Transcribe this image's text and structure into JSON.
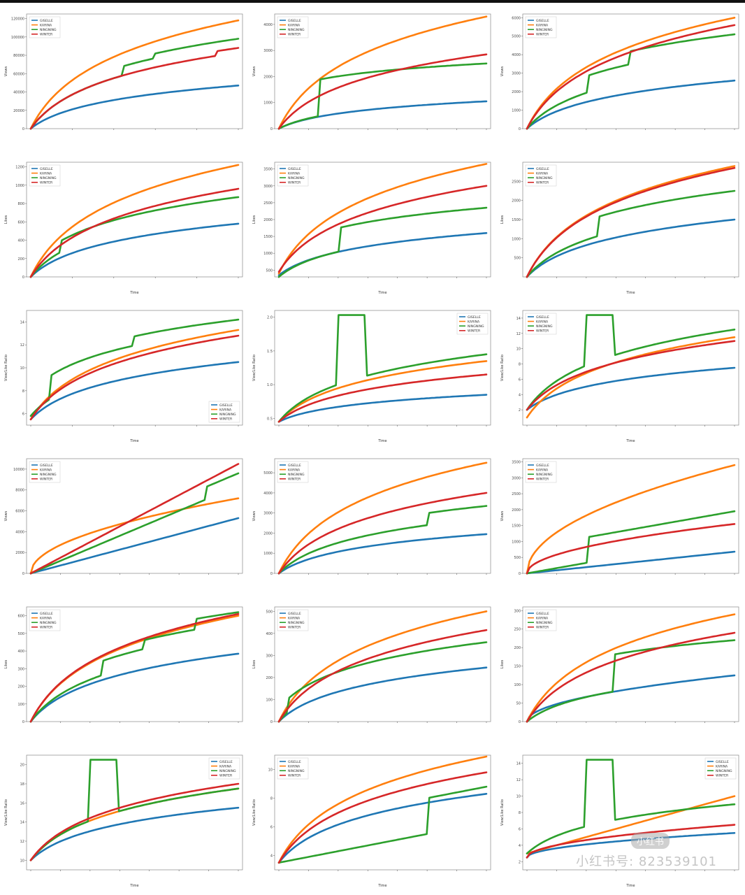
{
  "watermark": {
    "text": "小红书号: 823539101",
    "badge": "小红书"
  },
  "legend_names": [
    "GISELLE",
    "KARINA",
    "NINGNING",
    "WINTER"
  ],
  "colors": {
    "GISELLE": "#1f77b4",
    "KARINA": "#ff7f0e",
    "NINGNING": "#2ca02c",
    "WINTER": "#d62728"
  },
  "chart_data": [
    {
      "type": "line",
      "title": "",
      "xlabel": "",
      "ylabel": "Views",
      "legend": "top-left",
      "x_ticks": [
        "",
        "",
        "",
        "",
        "",
        ""
      ],
      "y_ticks": [
        "0",
        "20000",
        "40000",
        "60000",
        "80000",
        "100000",
        "120000"
      ],
      "ylim": [
        0,
        125000
      ],
      "series": [
        {
          "name": "GISELLE",
          "curve": "log",
          "end": 47000,
          "steps": []
        },
        {
          "name": "KARINA",
          "curve": "log",
          "end": 118000,
          "steps": []
        },
        {
          "name": "NINGNING",
          "curve": "log",
          "end": 98000,
          "steps": [
            [
              0.45,
              10000
            ],
            [
              0.6,
              5000
            ]
          ]
        },
        {
          "name": "WINTER",
          "curve": "log",
          "end": 88000,
          "steps": [
            [
              0.9,
              5000
            ]
          ]
        }
      ]
    },
    {
      "type": "line",
      "title": "",
      "xlabel": "",
      "ylabel": "Views",
      "legend": "top-left",
      "x_ticks": [
        "",
        "",
        "",
        "",
        "",
        "",
        "",
        ""
      ],
      "y_ticks": [
        "0",
        "1000",
        "2000",
        "3000",
        "4000"
      ],
      "ylim": [
        0,
        4400
      ],
      "series": [
        {
          "name": "GISELLE",
          "curve": "log",
          "end": 1050,
          "steps": []
        },
        {
          "name": "KARINA",
          "curve": "log",
          "end": 4300,
          "steps": []
        },
        {
          "name": "NINGNING",
          "curve": "log",
          "end": 2500,
          "steps": [
            [
              0.2,
              1400
            ]
          ]
        },
        {
          "name": "WINTER",
          "curve": "log",
          "end": 2850,
          "steps": []
        }
      ]
    },
    {
      "type": "line",
      "title": "",
      "xlabel": "",
      "ylabel": "Views",
      "legend": "top-left",
      "x_ticks": [
        "",
        "",
        "",
        "",
        "",
        "",
        "",
        ""
      ],
      "y_ticks": [
        "0",
        "1000",
        "2000",
        "3000",
        "4000",
        "5000",
        "6000"
      ],
      "ylim": [
        0,
        6200
      ],
      "series": [
        {
          "name": "GISELLE",
          "curve": "log",
          "end": 2600,
          "steps": []
        },
        {
          "name": "KARINA",
          "curve": "log",
          "end": 6000,
          "steps": []
        },
        {
          "name": "NINGNING",
          "curve": "log",
          "end": 5100,
          "steps": [
            [
              0.3,
              900
            ],
            [
              0.5,
              700
            ]
          ]
        },
        {
          "name": "WINTER",
          "curve": "log",
          "end": 5600,
          "steps": []
        }
      ]
    },
    {
      "type": "line",
      "title": "",
      "xlabel": "Time",
      "ylabel": "Likes",
      "legend": "top-left",
      "x_ticks": [
        "",
        "",
        "",
        "",
        "",
        ""
      ],
      "y_ticks": [
        "0",
        "200",
        "400",
        "600",
        "800",
        "1000",
        "1200"
      ],
      "ylim": [
        0,
        1250
      ],
      "series": [
        {
          "name": "GISELLE",
          "curve": "log",
          "end": 580,
          "steps": []
        },
        {
          "name": "KARINA",
          "curve": "log",
          "end": 1220,
          "steps": []
        },
        {
          "name": "NINGNING",
          "curve": "log",
          "end": 870,
          "steps": [
            [
              0.15,
              120
            ]
          ]
        },
        {
          "name": "WINTER",
          "curve": "log",
          "end": 960,
          "steps": []
        }
      ]
    },
    {
      "type": "line",
      "title": "",
      "xlabel": "Time",
      "ylabel": "Likes",
      "legend": "top-left",
      "x_ticks": [
        "",
        "",
        "",
        "",
        "",
        "",
        "",
        ""
      ],
      "y_ticks": [
        "500",
        "1000",
        "1500",
        "2000",
        "2500",
        "3000",
        "3500"
      ],
      "ylim": [
        300,
        3700
      ],
      "series": [
        {
          "name": "GISELLE",
          "curve": "log",
          "end": 1600,
          "steps": [],
          "start": 350
        },
        {
          "name": "KARINA",
          "curve": "log",
          "end": 3650,
          "steps": [],
          "start": 400
        },
        {
          "name": "NINGNING",
          "curve": "log",
          "end": 2350,
          "steps": [
            [
              0.3,
              700
            ]
          ],
          "start": 300
        },
        {
          "name": "WINTER",
          "curve": "log",
          "end": 3000,
          "steps": [],
          "start": 450
        }
      ]
    },
    {
      "type": "line",
      "title": "",
      "xlabel": "Time",
      "ylabel": "Likes",
      "legend": "top-left",
      "x_ticks": [
        "",
        "",
        "",
        "",
        "",
        "",
        "",
        ""
      ],
      "y_ticks": [
        "500",
        "1000",
        "1500",
        "2000",
        "2500"
      ],
      "ylim": [
        0,
        3000
      ],
      "series": [
        {
          "name": "GISELLE",
          "curve": "log",
          "end": 1500,
          "steps": []
        },
        {
          "name": "KARINA",
          "curve": "log",
          "end": 2900,
          "steps": []
        },
        {
          "name": "NINGNING",
          "curve": "log",
          "end": 2250,
          "steps": [
            [
              0.35,
              500
            ]
          ]
        },
        {
          "name": "WINTER",
          "curve": "log",
          "end": 2850,
          "steps": []
        }
      ]
    },
    {
      "type": "line",
      "title": "",
      "xlabel": "Time",
      "ylabel": "View/Like Ratio",
      "legend": "bottom-right",
      "x_ticks": [
        "",
        "",
        "",
        "",
        "",
        ""
      ],
      "y_ticks": [
        "6",
        "8",
        "10",
        "12",
        "14"
      ],
      "ylim": [
        5,
        15
      ],
      "series": [
        {
          "name": "GISELLE",
          "curve": "log",
          "end": 10.5,
          "steps": [],
          "start": 5.5
        },
        {
          "name": "KARINA",
          "curve": "log",
          "end": 13.3,
          "steps": [],
          "start": 5.5
        },
        {
          "name": "NINGNING",
          "curve": "log",
          "end": 14.2,
          "steps": [
            [
              0.1,
              2
            ],
            [
              0.5,
              0.8
            ]
          ],
          "start": 5.8
        },
        {
          "name": "WINTER",
          "curve": "log",
          "end": 12.8,
          "steps": [],
          "start": 5.5
        }
      ]
    },
    {
      "type": "line",
      "title": "",
      "xlabel": "Time",
      "ylabel": "View/Like Ratio",
      "legend": "top-right",
      "x_ticks": [
        "",
        "",
        "",
        "",
        "",
        "",
        "",
        ""
      ],
      "y_ticks": [
        "0.5",
        "1.0",
        "1.5",
        "2.0"
      ],
      "ylim": [
        0.4,
        2.1
      ],
      "series": [
        {
          "name": "GISELLE",
          "curve": "log",
          "end": 0.85,
          "steps": [],
          "start": 0.45
        },
        {
          "name": "KARINA",
          "curve": "log",
          "end": 1.35,
          "steps": [],
          "start": 0.45
        },
        {
          "name": "NINGNING",
          "curve": "spike",
          "end": 1.45,
          "steps": [],
          "start": 0.45
        },
        {
          "name": "WINTER",
          "curve": "log",
          "end": 1.15,
          "steps": [],
          "start": 0.45
        }
      ]
    },
    {
      "type": "line",
      "title": "",
      "xlabel": "Time",
      "ylabel": "View/Like Ratio",
      "legend": "top-left",
      "x_ticks": [
        "",
        "",
        "",
        "",
        "",
        "",
        "",
        ""
      ],
      "y_ticks": [
        "2",
        "4",
        "6",
        "8",
        "10",
        "12",
        "14"
      ],
      "ylim": [
        0,
        15
      ],
      "series": [
        {
          "name": "GISELLE",
          "curve": "log",
          "end": 7.5,
          "steps": [],
          "start": 2
        },
        {
          "name": "KARINA",
          "curve": "log",
          "end": 11.5,
          "steps": [],
          "start": 1
        },
        {
          "name": "NINGNING",
          "curve": "spike",
          "end": 12.5,
          "steps": [],
          "start": 2
        },
        {
          "name": "WINTER",
          "curve": "log",
          "end": 11,
          "steps": [],
          "start": 2
        }
      ]
    },
    {
      "type": "line",
      "title": "",
      "xlabel": "",
      "ylabel": "Views",
      "legend": "top-left",
      "x_ticks": [
        "",
        "",
        "",
        "",
        "",
        "",
        "",
        ""
      ],
      "y_ticks": [
        "0",
        "2000",
        "4000",
        "6000",
        "8000",
        "10000"
      ],
      "ylim": [
        0,
        11000
      ],
      "series": [
        {
          "name": "GISELLE",
          "curve": "lin",
          "end": 5300,
          "steps": []
        },
        {
          "name": "KARINA",
          "curve": "sqrt",
          "end": 7200,
          "steps": []
        },
        {
          "name": "NINGNING",
          "curve": "lin",
          "end": 9600,
          "steps": [
            [
              0.85,
              1200
            ]
          ]
        },
        {
          "name": "WINTER",
          "curve": "lin",
          "end": 10500,
          "steps": []
        }
      ]
    },
    {
      "type": "line",
      "title": "",
      "xlabel": "",
      "ylabel": "Views",
      "legend": "top-left",
      "x_ticks": [
        "",
        "",
        "",
        "",
        "",
        "",
        "",
        ""
      ],
      "y_ticks": [
        "0",
        "1000",
        "2000",
        "3000",
        "4000",
        "5000"
      ],
      "ylim": [
        0,
        5700
      ],
      "series": [
        {
          "name": "GISELLE",
          "curve": "log",
          "end": 1950,
          "steps": []
        },
        {
          "name": "KARINA",
          "curve": "log",
          "end": 5500,
          "steps": []
        },
        {
          "name": "NINGNING",
          "curve": "log",
          "end": 3350,
          "steps": [
            [
              0.72,
              600
            ]
          ]
        },
        {
          "name": "WINTER",
          "curve": "log",
          "end": 4000,
          "steps": []
        }
      ]
    },
    {
      "type": "line",
      "title": "",
      "xlabel": "",
      "ylabel": "Views",
      "legend": "top-left",
      "x_ticks": [
        "",
        "",
        "",
        "",
        "",
        "",
        "",
        ""
      ],
      "y_ticks": [
        "0",
        "500",
        "1000",
        "1500",
        "2000",
        "2500",
        "3000",
        "3500"
      ],
      "ylim": [
        0,
        3600
      ],
      "series": [
        {
          "name": "GISELLE",
          "curve": "lin",
          "end": 680,
          "steps": []
        },
        {
          "name": "KARINA",
          "curve": "sqrt",
          "end": 3400,
          "steps": []
        },
        {
          "name": "NINGNING",
          "curve": "lin",
          "end": 1950,
          "steps": [
            [
              0.3,
              800
            ]
          ]
        },
        {
          "name": "WINTER",
          "curve": "sqrt",
          "end": 1550,
          "steps": []
        }
      ]
    },
    {
      "type": "line",
      "title": "",
      "xlabel": "",
      "ylabel": "Likes",
      "legend": "top-left",
      "x_ticks": [
        "",
        "",
        "",
        "",
        "",
        "",
        "",
        ""
      ],
      "y_ticks": [
        "0",
        "100",
        "200",
        "300",
        "400",
        "500",
        "600"
      ],
      "ylim": [
        0,
        650
      ],
      "series": [
        {
          "name": "GISELLE",
          "curve": "log",
          "end": 385,
          "steps": []
        },
        {
          "name": "KARINA",
          "curve": "log",
          "end": 600,
          "steps": []
        },
        {
          "name": "NINGNING",
          "curve": "log",
          "end": 620,
          "steps": [
            [
              0.35,
              80
            ],
            [
              0.55,
              50
            ],
            [
              0.8,
              60
            ]
          ]
        },
        {
          "name": "WINTER",
          "curve": "log",
          "end": 610,
          "steps": []
        }
      ]
    },
    {
      "type": "line",
      "title": "",
      "xlabel": "",
      "ylabel": "Likes",
      "legend": "top-left",
      "x_ticks": [
        "",
        "",
        "",
        "",
        "",
        "",
        "",
        ""
      ],
      "y_ticks": [
        "0",
        "100",
        "200",
        "300",
        "400",
        "500"
      ],
      "ylim": [
        0,
        520
      ],
      "series": [
        {
          "name": "GISELLE",
          "curve": "log",
          "end": 245,
          "steps": []
        },
        {
          "name": "KARINA",
          "curve": "log",
          "end": 500,
          "steps": []
        },
        {
          "name": "NINGNING",
          "curve": "log",
          "end": 360,
          "steps": [
            [
              0.05,
              60
            ]
          ]
        },
        {
          "name": "WINTER",
          "curve": "log",
          "end": 415,
          "steps": []
        }
      ]
    },
    {
      "type": "line",
      "title": "",
      "xlabel": "",
      "ylabel": "Likes",
      "legend": "top-left",
      "x_ticks": [
        "",
        "",
        "",
        "",
        "",
        "",
        "",
        ""
      ],
      "y_ticks": [
        "0",
        "50",
        "100",
        "150",
        "200",
        "250",
        "300"
      ],
      "ylim": [
        0,
        310
      ],
      "series": [
        {
          "name": "GISELLE",
          "curve": "sqrt",
          "end": 125,
          "steps": []
        },
        {
          "name": "KARINA",
          "curve": "log",
          "end": 290,
          "steps": []
        },
        {
          "name": "NINGNING",
          "curve": "log",
          "end": 220,
          "steps": [
            [
              0.42,
              100
            ]
          ]
        },
        {
          "name": "WINTER",
          "curve": "log",
          "end": 240,
          "steps": []
        }
      ]
    },
    {
      "type": "line",
      "title": "",
      "xlabel": "Time",
      "ylabel": "View/Like Ratio",
      "legend": "top-right",
      "x_ticks": [
        "",
        "",
        "",
        "",
        "",
        "",
        "",
        ""
      ],
      "y_ticks": [
        "10",
        "12",
        "14",
        "16",
        "18",
        "20"
      ],
      "ylim": [
        9,
        21
      ],
      "series": [
        {
          "name": "GISELLE",
          "curve": "log",
          "end": 15.5,
          "steps": [],
          "start": 10
        },
        {
          "name": "KARINA",
          "curve": "log",
          "end": 17.5,
          "steps": [],
          "start": 10
        },
        {
          "name": "NINGNING",
          "curve": "spike",
          "end": 17.5,
          "steps": [],
          "start": 10
        },
        {
          "name": "WINTER",
          "curve": "log",
          "end": 18,
          "steps": [],
          "start": 10
        }
      ]
    },
    {
      "type": "line",
      "title": "",
      "xlabel": "Time",
      "ylabel": "View/Like Ratio",
      "legend": "top-left",
      "x_ticks": [
        "",
        "",
        "",
        "",
        "",
        "",
        "",
        ""
      ],
      "y_ticks": [
        "4",
        "6",
        "8",
        "10"
      ],
      "ylim": [
        3,
        11
      ],
      "series": [
        {
          "name": "GISELLE",
          "curve": "log",
          "end": 8.3,
          "steps": [],
          "start": 3.5
        },
        {
          "name": "KARINA",
          "curve": "log",
          "end": 10.9,
          "steps": [],
          "start": 3.5
        },
        {
          "name": "NINGNING",
          "curve": "lin",
          "end": 8.8,
          "steps": [
            [
              0.72,
              2.5
            ]
          ],
          "start": 3.5
        },
        {
          "name": "WINTER",
          "curve": "log",
          "end": 9.8,
          "steps": [],
          "start": 3.5
        }
      ]
    },
    {
      "type": "line",
      "title": "",
      "xlabel": "Time",
      "ylabel": "View/Like Ratio",
      "legend": "top-right",
      "x_ticks": [
        "",
        "",
        "",
        "",
        "",
        "",
        "",
        ""
      ],
      "y_ticks": [
        "2",
        "4",
        "6",
        "8",
        "10",
        "12",
        "14"
      ],
      "ylim": [
        1,
        15
      ],
      "series": [
        {
          "name": "GISELLE",
          "curve": "sqrt",
          "end": 5.5,
          "steps": [],
          "start": 2.5
        },
        {
          "name": "KARINA",
          "curve": "lin",
          "end": 10,
          "steps": [],
          "start": 3
        },
        {
          "name": "NINGNING",
          "curve": "spike",
          "end": 9,
          "steps": [],
          "start": 3
        },
        {
          "name": "WINTER",
          "curve": "sqrt",
          "end": 6.5,
          "steps": [],
          "start": 2.5
        }
      ]
    }
  ]
}
